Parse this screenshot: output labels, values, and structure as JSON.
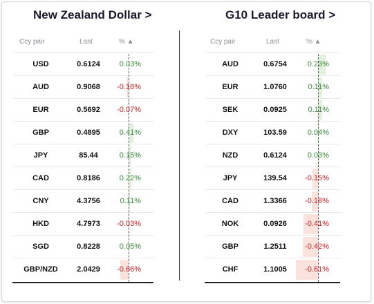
{
  "left": {
    "title": "New Zealand Dollar >",
    "headers": {
      "pair": "Ccy pair",
      "last": "Last",
      "pct": "% ▲"
    },
    "rows": [
      {
        "pair": "USD",
        "last": "0.6124",
        "pct": "0.03%",
        "value": 0.03
      },
      {
        "pair": "AUD",
        "last": "0.9068",
        "pct": "-0.18%",
        "value": -0.18
      },
      {
        "pair": "EUR",
        "last": "0.5692",
        "pct": "-0.07%",
        "value": -0.07
      },
      {
        "pair": "GBP",
        "last": "0.4895",
        "pct": "0.41%",
        "value": 0.41
      },
      {
        "pair": "JPY",
        "last": "85.44",
        "pct": "0.15%",
        "value": 0.15
      },
      {
        "pair": "CAD",
        "last": "0.8186",
        "pct": "0.22%",
        "value": 0.22
      },
      {
        "pair": "CNY",
        "last": "4.3756",
        "pct": "0.11%",
        "value": 0.11
      },
      {
        "pair": "HKD",
        "last": "4.7973",
        "pct": "-0.03%",
        "value": -0.03
      },
      {
        "pair": "SGD",
        "last": "0.8228",
        "pct": "0.05%",
        "value": 0.05
      },
      {
        "pair": "GBP/NZD",
        "last": "2.0429",
        "pct": "-0.66%",
        "value": -0.66
      }
    ]
  },
  "right": {
    "title": "G10 Leader board >",
    "headers": {
      "pair": "Ccy pair",
      "last": "Last",
      "pct": "% ▲"
    },
    "rows": [
      {
        "pair": "AUD",
        "last": "0.6754",
        "pct": "0.23%",
        "value": 0.23
      },
      {
        "pair": "EUR",
        "last": "1.0760",
        "pct": "0.11%",
        "value": 0.11
      },
      {
        "pair": "SEK",
        "last": "0.0925",
        "pct": "0.11%",
        "value": 0.11
      },
      {
        "pair": "DXY",
        "last": "103.59",
        "pct": "0.04%",
        "value": 0.04
      },
      {
        "pair": "NZD",
        "last": "0.6124",
        "pct": "0.03%",
        "value": 0.03
      },
      {
        "pair": "JPY",
        "last": "139.54",
        "pct": "-0.15%",
        "value": -0.15
      },
      {
        "pair": "CAD",
        "last": "1.3366",
        "pct": "-0.18%",
        "value": -0.18
      },
      {
        "pair": "NOK",
        "last": "0.0926",
        "pct": "-0.41%",
        "value": -0.41
      },
      {
        "pair": "GBP",
        "last": "1.2511",
        "pct": "-0.42%",
        "value": -0.42
      },
      {
        "pair": "CHF",
        "last": "1.1005",
        "pct": "-0.61%",
        "value": -0.61
      }
    ]
  },
  "colors": {
    "positive": "#3a8a3a",
    "negative": "#cc2222",
    "positive_bar": "#e3f1df",
    "negative_bar": "#fbe2dd"
  }
}
